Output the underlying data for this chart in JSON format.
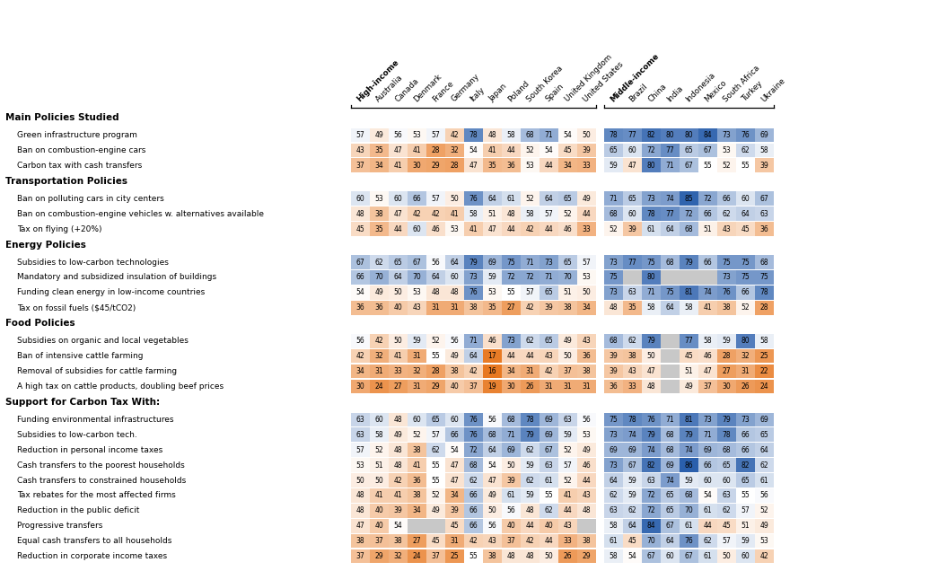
{
  "hi_countries": [
    "Australia",
    "Canada",
    "Denmark",
    "France",
    "Germany",
    "Italy",
    "Japan",
    "Poland",
    "South Korea",
    "Spain",
    "United Kingdom",
    "United States"
  ],
  "mi_countries": [
    "Brazil",
    "China",
    "India",
    "Indonesia",
    "Mexico",
    "South Africa",
    "Turkey",
    "Ukraine"
  ],
  "sections": [
    {
      "header": "Main Policies Studied",
      "rows": [
        {
          "label": "Green infrastructure program",
          "hi": [
            57,
            49,
            56,
            53,
            57,
            42,
            78,
            48,
            58,
            68,
            71,
            54,
            50
          ],
          "mi": [
            78,
            77,
            82,
            80,
            80,
            84,
            73,
            76,
            69
          ]
        },
        {
          "label": "Ban on combustion-engine cars",
          "hi": [
            43,
            35,
            47,
            41,
            28,
            32,
            54,
            41,
            44,
            52,
            54,
            45,
            39
          ],
          "mi": [
            65,
            60,
            72,
            77,
            65,
            67,
            53,
            62,
            58
          ]
        },
        {
          "label": "Carbon tax with cash transfers",
          "hi": [
            37,
            34,
            41,
            30,
            29,
            28,
            47,
            35,
            36,
            53,
            44,
            34,
            33
          ],
          "mi": [
            59,
            47,
            80,
            71,
            67,
            55,
            52,
            55,
            39
          ]
        }
      ]
    },
    {
      "header": "Transportation Policies",
      "rows": [
        {
          "label": "Ban on polluting cars in city centers",
          "hi": [
            60,
            53,
            60,
            66,
            57,
            50,
            76,
            64,
            61,
            52,
            64,
            65,
            49
          ],
          "mi": [
            71,
            65,
            73,
            74,
            85,
            72,
            66,
            60,
            67
          ]
        },
        {
          "label": "Ban on combustion-engine vehicles w. alternatives available",
          "hi": [
            48,
            38,
            47,
            42,
            42,
            41,
            58,
            51,
            48,
            58,
            57,
            52,
            44
          ],
          "mi": [
            68,
            60,
            78,
            77,
            72,
            66,
            62,
            64,
            63
          ]
        },
        {
          "label": "Tax on flying (+20%)",
          "hi": [
            45,
            35,
            44,
            60,
            46,
            53,
            41,
            47,
            44,
            42,
            44,
            46,
            33
          ],
          "mi": [
            52,
            39,
            61,
            64,
            68,
            51,
            43,
            45,
            36
          ]
        }
      ]
    },
    {
      "header": "Energy Policies",
      "rows": [
        {
          "label": "Subsidies to low-carbon technologies",
          "hi": [
            67,
            62,
            65,
            67,
            56,
            64,
            79,
            69,
            75,
            71,
            73,
            65,
            57
          ],
          "mi": [
            73,
            77,
            75,
            68,
            79,
            66,
            75,
            75,
            68
          ]
        },
        {
          "label": "Mandatory and subsidized insulation of buildings",
          "hi": [
            66,
            70,
            64,
            70,
            64,
            60,
            73,
            59,
            72,
            72,
            71,
            70,
            53
          ],
          "mi": [
            75,
            null,
            80,
            null,
            null,
            null,
            73,
            75,
            75
          ]
        },
        {
          "label": "Funding clean energy in low-income countries",
          "hi": [
            54,
            49,
            50,
            53,
            48,
            48,
            76,
            53,
            55,
            57,
            65,
            51,
            50
          ],
          "mi": [
            73,
            63,
            71,
            75,
            81,
            74,
            76,
            66,
            78
          ]
        },
        {
          "label": "Tax on fossil fuels ($45/tCO2)",
          "hi": [
            36,
            36,
            40,
            43,
            31,
            31,
            38,
            35,
            27,
            42,
            39,
            38,
            34
          ],
          "mi": [
            48,
            35,
            58,
            64,
            58,
            41,
            38,
            52,
            28
          ]
        }
      ]
    },
    {
      "header": "Food Policies",
      "rows": [
        {
          "label": "Subsidies on organic and local vegetables",
          "hi": [
            56,
            42,
            50,
            59,
            52,
            56,
            71,
            46,
            73,
            62,
            65,
            49,
            43
          ],
          "mi": [
            68,
            62,
            79,
            null,
            77,
            58,
            59,
            80,
            58
          ]
        },
        {
          "label": "Ban of intensive cattle farming",
          "hi": [
            42,
            32,
            41,
            31,
            55,
            49,
            64,
            17,
            44,
            44,
            43,
            50,
            36
          ],
          "mi": [
            39,
            38,
            50,
            null,
            45,
            46,
            28,
            32,
            25
          ]
        },
        {
          "label": "Removal of subsidies for cattle farming",
          "hi": [
            34,
            31,
            33,
            32,
            28,
            38,
            42,
            16,
            34,
            31,
            42,
            37,
            38
          ],
          "mi": [
            39,
            43,
            47,
            null,
            51,
            47,
            27,
            31,
            22
          ]
        },
        {
          "label": "A high tax on cattle products, doubling beef prices",
          "hi": [
            30,
            24,
            27,
            31,
            29,
            40,
            37,
            19,
            30,
            26,
            31,
            31,
            31
          ],
          "mi": [
            36,
            33,
            48,
            null,
            49,
            37,
            30,
            26,
            24
          ]
        }
      ]
    },
    {
      "header": "Support for Carbon Tax With:",
      "rows": [
        {
          "label": "Funding environmental infrastructures",
          "hi": [
            63,
            60,
            48,
            60,
            65,
            60,
            76,
            56,
            68,
            78,
            69,
            63,
            56
          ],
          "mi": [
            75,
            78,
            76,
            71,
            81,
            73,
            79,
            73,
            69
          ]
        },
        {
          "label": "Subsidies to low-carbon tech.",
          "hi": [
            63,
            58,
            49,
            52,
            57,
            66,
            76,
            68,
            71,
            79,
            69,
            59,
            53
          ],
          "mi": [
            73,
            74,
            79,
            68,
            79,
            71,
            78,
            66,
            65
          ]
        },
        {
          "label": "Reduction in personal income taxes",
          "hi": [
            57,
            52,
            48,
            38,
            62,
            54,
            72,
            64,
            69,
            62,
            67,
            52,
            49
          ],
          "mi": [
            69,
            69,
            74,
            68,
            74,
            69,
            68,
            66,
            64
          ]
        },
        {
          "label": "Cash transfers to the poorest households",
          "hi": [
            53,
            51,
            48,
            41,
            55,
            47,
            68,
            54,
            50,
            59,
            63,
            57,
            46
          ],
          "mi": [
            73,
            67,
            82,
            69,
            86,
            66,
            65,
            82,
            62
          ]
        },
        {
          "label": "Cash transfers to constrained households",
          "hi": [
            50,
            50,
            42,
            36,
            55,
            47,
            62,
            47,
            39,
            62,
            61,
            52,
            44
          ],
          "mi": [
            64,
            59,
            63,
            74,
            59,
            60,
            60,
            65,
            61
          ]
        },
        {
          "label": "Tax rebates for the most affected firms",
          "hi": [
            48,
            41,
            41,
            38,
            52,
            34,
            66,
            49,
            61,
            59,
            55,
            41,
            43
          ],
          "mi": [
            62,
            59,
            72,
            65,
            68,
            54,
            63,
            55,
            56
          ]
        },
        {
          "label": "Reduction in the public deficit",
          "hi": [
            48,
            40,
            39,
            34,
            49,
            39,
            66,
            50,
            56,
            48,
            62,
            44,
            48
          ],
          "mi": [
            63,
            62,
            72,
            65,
            70,
            61,
            62,
            57,
            52
          ]
        },
        {
          "label": "Progressive transfers",
          "hi": [
            47,
            40,
            54,
            null,
            null,
            45,
            66,
            56,
            40,
            44,
            40,
            43,
            null
          ],
          "mi": [
            58,
            64,
            84,
            67,
            61,
            44,
            45,
            51,
            49
          ]
        },
        {
          "label": "Equal cash transfers to all households",
          "hi": [
            38,
            37,
            38,
            27,
            45,
            31,
            42,
            43,
            37,
            42,
            44,
            33,
            38
          ],
          "mi": [
            61,
            45,
            70,
            64,
            76,
            62,
            57,
            59,
            53
          ]
        },
        {
          "label": "Reduction in corporate income taxes",
          "hi": [
            37,
            29,
            32,
            24,
            37,
            25,
            55,
            38,
            48,
            48,
            50,
            26,
            29
          ],
          "mi": [
            58,
            54,
            67,
            60,
            67,
            61,
            50,
            60,
            42
          ]
        }
      ]
    }
  ]
}
